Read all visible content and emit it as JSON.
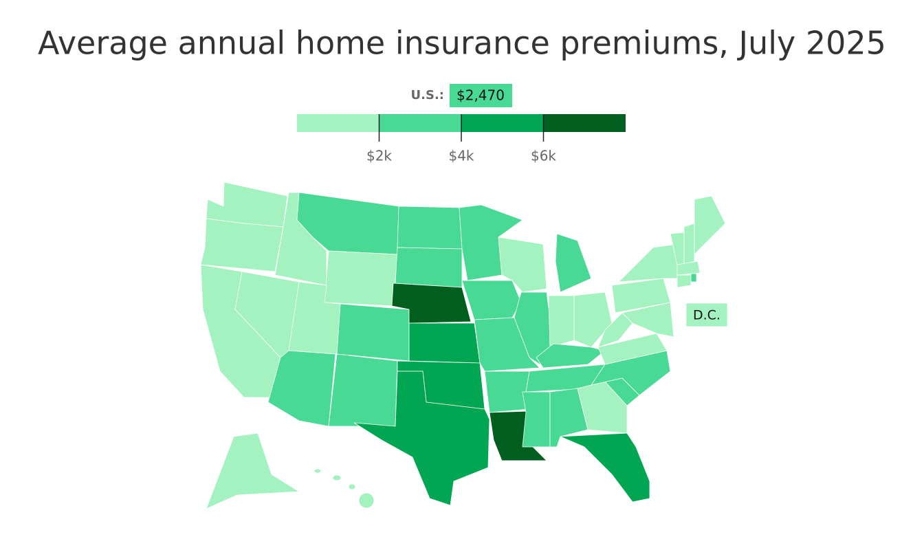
{
  "title": "Average annual home insurance premiums, July 2025",
  "us": {
    "label": "U.S.:",
    "value": 2470,
    "value_label": "$2,470"
  },
  "legend": {
    "colors": [
      "#a3f2c0",
      "#48d994",
      "#00a651",
      "#005e1f"
    ],
    "lim": [
      0,
      8000
    ],
    "ticks": [
      {
        "value": 2000,
        "label": "$2k"
      },
      {
        "value": 4000,
        "label": "$4k"
      },
      {
        "value": 6000,
        "label": "$6k"
      }
    ]
  },
  "dc_label": "D.C."
}
